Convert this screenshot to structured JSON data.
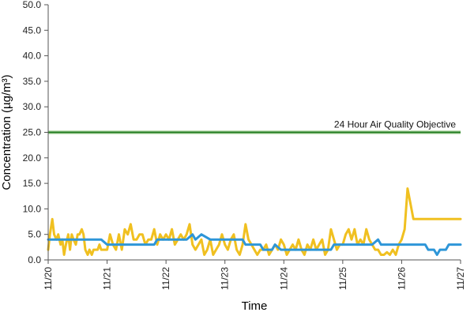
{
  "chart_data": {
    "type": "line",
    "title": "",
    "xlabel": "Time",
    "ylabel": "Concentration (µg/m³)",
    "ylim": [
      0,
      50
    ],
    "y_ticks": [
      "0.0",
      "5.0",
      "10.0",
      "15.0",
      "20.0",
      "25.0",
      "30.0",
      "35.0",
      "40.0",
      "45.0",
      "50.0"
    ],
    "x_ticks": [
      "11/20",
      "11/21",
      "11/22",
      "11/23",
      "11/24",
      "11/25",
      "11/26",
      "11/27"
    ],
    "grid": false,
    "legend": "none",
    "reference_line": {
      "label": "24 Hour Air Quality Objective",
      "value": 25,
      "color": "#1e7a1e"
    },
    "series": [
      {
        "color": "#f0c020",
        "x": [
          0,
          0.03,
          0.07,
          0.1,
          0.14,
          0.17,
          0.21,
          0.24,
          0.27,
          0.3,
          0.34,
          0.37,
          0.4,
          0.43,
          0.47,
          0.5,
          0.53,
          0.57,
          0.6,
          0.63,
          0.67,
          0.7,
          0.74,
          0.77,
          0.8,
          0.84,
          0.87,
          0.9,
          0.94,
          0.97,
          1.0,
          1.05,
          1.1,
          1.15,
          1.2,
          1.25,
          1.3,
          1.35,
          1.4,
          1.45,
          1.5,
          1.55,
          1.6,
          1.65,
          1.7,
          1.75,
          1.8,
          1.85,
          1.9,
          1.95,
          2.0,
          2.05,
          2.1,
          2.15,
          2.2,
          2.25,
          2.3,
          2.35,
          2.4,
          2.45,
          2.5,
          2.55,
          2.6,
          2.65,
          2.7,
          2.75,
          2.8,
          2.85,
          2.9,
          2.95,
          3.0,
          3.05,
          3.1,
          3.15,
          3.2,
          3.25,
          3.3,
          3.35,
          3.4,
          3.45,
          3.5,
          3.55,
          3.6,
          3.65,
          3.7,
          3.75,
          3.8,
          3.85,
          3.9,
          3.95,
          4.0,
          4.05,
          4.1,
          4.15,
          4.2,
          4.25,
          4.3,
          4.35,
          4.4,
          4.45,
          4.5,
          4.55,
          4.6,
          4.65,
          4.7,
          4.75,
          4.8,
          4.85,
          4.9,
          4.95,
          5.0,
          5.05,
          5.1,
          5.15,
          5.2,
          5.25,
          5.3,
          5.35,
          5.4,
          5.45,
          5.5,
          5.55,
          5.6,
          5.65,
          5.7,
          5.75,
          5.8,
          5.85,
          5.9,
          5.95,
          6.0,
          6.05,
          6.1,
          6.15,
          6.2,
          6.25,
          6.3,
          6.35,
          6.4,
          6.45,
          6.5,
          6.55,
          6.6,
          6.65,
          6.7,
          6.75,
          6.8,
          6.85,
          6.9,
          6.95,
          7.0
        ],
        "y": [
          2,
          5,
          8,
          5,
          4,
          5,
          3,
          4,
          1,
          3,
          5,
          2,
          5,
          4,
          3,
          5,
          5,
          6,
          5,
          2,
          1,
          2,
          1,
          2,
          2,
          2,
          3,
          2,
          2,
          2,
          2,
          5,
          3,
          2,
          5,
          2,
          6,
          5,
          7,
          4,
          4,
          5,
          5,
          3,
          4,
          4,
          6,
          3,
          5,
          4,
          5,
          4,
          6,
          3,
          4,
          5,
          4,
          5,
          7,
          3,
          2,
          3,
          4,
          1,
          2,
          4,
          1,
          2,
          3,
          5,
          3,
          2,
          4,
          5,
          2,
          1,
          3,
          7,
          4,
          3,
          2,
          1,
          2,
          2,
          3,
          1,
          2,
          3,
          2,
          4,
          3,
          1,
          2,
          3,
          2,
          4,
          2,
          1,
          3,
          2,
          4,
          2,
          3,
          4,
          1,
          2,
          6,
          4,
          2,
          3,
          3,
          5,
          6,
          4,
          6,
          3,
          4,
          3,
          6,
          4,
          3,
          2,
          2,
          1,
          1,
          1.5,
          1,
          2,
          1,
          3,
          4,
          6,
          14,
          11,
          8,
          8,
          8,
          8,
          8,
          8,
          8,
          8,
          8,
          8,
          8,
          8,
          8,
          8,
          8,
          8,
          8
        ],
        "note_points": 0
      },
      {
        "color": "#2e96d8",
        "x": [
          0,
          0.5,
          0.9,
          1.0,
          1.4,
          1.8,
          1.85,
          2.3,
          2.35,
          2.45,
          2.5,
          2.6,
          2.75,
          2.85,
          3.3,
          3.35,
          3.6,
          3.65,
          3.8,
          3.85,
          3.95,
          4.0,
          4.5,
          4.8,
          4.85,
          5.5,
          5.6,
          5.65,
          5.7,
          6.0,
          6.4,
          6.45,
          6.55,
          6.6,
          6.65,
          6.75,
          6.8,
          7.0
        ],
        "y": [
          4,
          4,
          4,
          3,
          3,
          3,
          4,
          4,
          4,
          5,
          4,
          5,
          4,
          4,
          4,
          3,
          3,
          2,
          2,
          3,
          2,
          2,
          2,
          2,
          3,
          3,
          4,
          3,
          3,
          3,
          3,
          2,
          2,
          1,
          2,
          2,
          3,
          3
        ]
      }
    ]
  }
}
